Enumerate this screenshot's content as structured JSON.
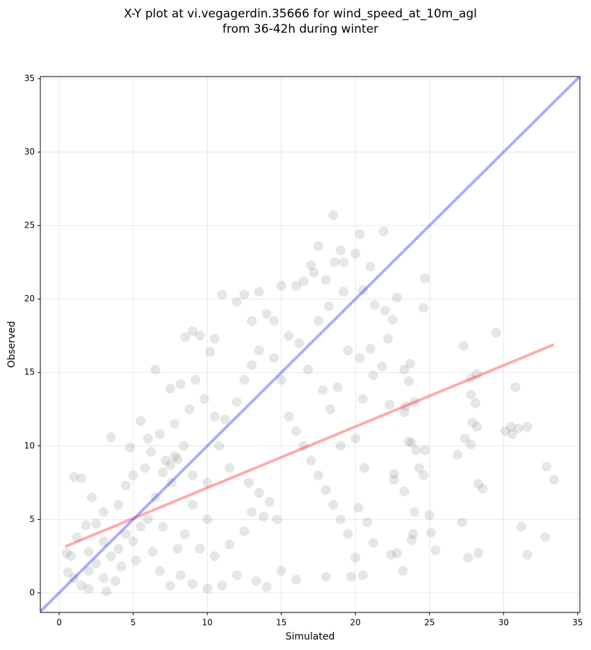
{
  "chart_data": {
    "type": "scatter",
    "title": [
      "X-Y plot at vi.vegagerdin.35666 for wind_speed_at_10m_agl",
      "from 36-42h during winter"
    ],
    "x_label": "Simulated",
    "y_label": "Observed",
    "xlim": [
      -1.27,
      35.15
    ],
    "ylim": [
      -1.33,
      35.14
    ],
    "xticks": [
      0,
      5,
      10,
      15,
      20,
      25,
      30,
      35
    ],
    "yticks": [
      0,
      5,
      10,
      15,
      20,
      25,
      30,
      35
    ],
    "grid": true,
    "series": [
      {
        "color": "#333333",
        "alpha": 0.12,
        "x": [
          1,
          1.5,
          2,
          2.5,
          3,
          3.5,
          4,
          4.5,
          5,
          5.5,
          6,
          3,
          2,
          1.2,
          0.8,
          3.8,
          4.2,
          5.2,
          6.3,
          6.8,
          7.5,
          8.2,
          9,
          1.0,
          1.5,
          2.2,
          3.5,
          4.8,
          5.5,
          6.5,
          3,
          2.5,
          4,
          4.5,
          5,
          5.8,
          6.2,
          6.8,
          7.2,
          7.5,
          7.8,
          8,
          7,
          7.6,
          8.4,
          8.8,
          9.2,
          8.5,
          9,
          9.5,
          10.2,
          10.5,
          11.0,
          12,
          12.5,
          13,
          13.5,
          14,
          14.5,
          15,
          15.5,
          16,
          16.5,
          17,
          17.2,
          17.5,
          18,
          18.5,
          18.6,
          19,
          19.2,
          20,
          20.3,
          21,
          21.9,
          20.5,
          21.3,
          22,
          22.5,
          22.8,
          24.7,
          24.6,
          22.2,
          21.8,
          21.0,
          20.3,
          22.3,
          23.3,
          23.7,
          23.3,
          23.4,
          23.6,
          24.0,
          27.3,
          29.5,
          27.8,
          28.2,
          27.8,
          28.1,
          27.9,
          28.2,
          27.4,
          27.8,
          30.1,
          30.5,
          30.8,
          31.0,
          31.6,
          30.6,
          26.9,
          24.7,
          24.1,
          23.8,
          23.6,
          24.3,
          24.6,
          22.6,
          23.3,
          22.6,
          24,
          25,
          23.9,
          23.8,
          25.1,
          23.2,
          25.4,
          22.4,
          22.8,
          27.2,
          27.6,
          28.3,
          28.3,
          28.6,
          31.2,
          31.6,
          32.8,
          32.9,
          33.4,
          20,
          19.7,
          20.5,
          18,
          16,
          15,
          14,
          13.3,
          12,
          11,
          10,
          10.5,
          11.5,
          12.5,
          13,
          13.8,
          14.2,
          14.7,
          13.5,
          12.8,
          11.5,
          10.8,
          11.2,
          12,
          12.5,
          13,
          13.5,
          14.5,
          15,
          15.5,
          16,
          16.5,
          17,
          17.5,
          18,
          18.5,
          19,
          19.5,
          20.2,
          20.8,
          21.2,
          20.6,
          20,
          19,
          18.3,
          17.8,
          16.8,
          16.2,
          17.5,
          18.2,
          19.2,
          19.5,
          18.8,
          21.2,
          20.5,
          10,
          9,
          8.5,
          9.5,
          8,
          7,
          6.5,
          9,
          10,
          10.5,
          9.8,
          8.2,
          7.5,
          7.8,
          6,
          2,
          3.2,
          0.6,
          0.5,
          1.8
        ],
        "values": [
          1,
          0.5,
          1.5,
          2,
          1,
          2.5,
          3,
          4,
          3.5,
          4.5,
          5,
          3.5,
          2.8,
          3.8,
          2.5,
          0.8,
          1.8,
          2.2,
          2.8,
          1.5,
          0.5,
          1.2,
          0.6,
          7.9,
          7.8,
          6.5,
          10.6,
          9.9,
          11.7,
          15.2,
          5.5,
          4.7,
          6,
          7.3,
          8,
          8.5,
          9.6,
          10.8,
          9,
          8.7,
          9.3,
          9.1,
          8.2,
          7.5,
          10,
          12.5,
          14.5,
          17.4,
          17.8,
          17.5,
          16.4,
          17.3,
          20.3,
          19.8,
          20.3,
          18.5,
          20.5,
          19,
          18.5,
          20.9,
          17.5,
          20.9,
          21.2,
          22.3,
          21.8,
          23.6,
          21.3,
          25.7,
          22.5,
          23.3,
          22.5,
          23.1,
          24.4,
          22.2,
          24.6,
          20.6,
          19.6,
          19.2,
          18.6,
          20.1,
          21.4,
          19.4,
          17.3,
          15.4,
          16.6,
          16.0,
          12.8,
          15.2,
          15.6,
          12.3,
          12.7,
          14.4,
          13.0,
          16.8,
          17.7,
          14.6,
          14.9,
          13.5,
          12.9,
          11.6,
          11.3,
          10.5,
          10.1,
          11,
          11.3,
          14,
          11.2,
          11.3,
          10.8,
          9.4,
          9.7,
          9.7,
          10.2,
          10.3,
          8.5,
          8.0,
          8.1,
          6.9,
          7.7,
          5.5,
          5.3,
          4.0,
          3.6,
          4.1,
          1.5,
          2.9,
          2.6,
          2.7,
          4.8,
          2.4,
          2.7,
          7.4,
          7.1,
          4.5,
          2.6,
          3.8,
          8.6,
          7.7,
          2.4,
          1.1,
          1.2,
          1.1,
          0.9,
          1.5,
          0.4,
          0.8,
          1.2,
          0.5,
          0.3,
          2.5,
          3.3,
          4.2,
          5.5,
          5.2,
          6.2,
          5.0,
          6.8,
          7.5,
          8.5,
          10.0,
          11.8,
          13,
          14.5,
          15.5,
          16.5,
          16,
          14.5,
          12,
          11,
          10,
          9,
          8,
          7,
          6,
          5,
          4,
          5.8,
          4.8,
          3.4,
          8.5,
          10.5,
          10,
          12.5,
          13.8,
          15.2,
          17,
          18.5,
          19.5,
          20.5,
          16.5,
          14,
          14.8,
          13.2,
          5,
          6,
          4,
          3,
          3,
          4.5,
          6.5,
          8,
          7.5,
          12,
          13.2,
          14.2,
          13.9,
          11.5,
          10.5,
          0.3,
          0.1,
          1.4,
          2.7,
          4.6
        ]
      }
    ],
    "lines": [
      {
        "color": "#0000ff",
        "alpha": 0.33,
        "x": [
          -1.27,
          35.15
        ],
        "values": [
          -1.27,
          35.15
        ]
      },
      {
        "color": "#ff0000",
        "alpha": 0.33,
        "x": [
          0.4,
          33.4
        ],
        "values": [
          3.15,
          16.9
        ]
      }
    ]
  }
}
